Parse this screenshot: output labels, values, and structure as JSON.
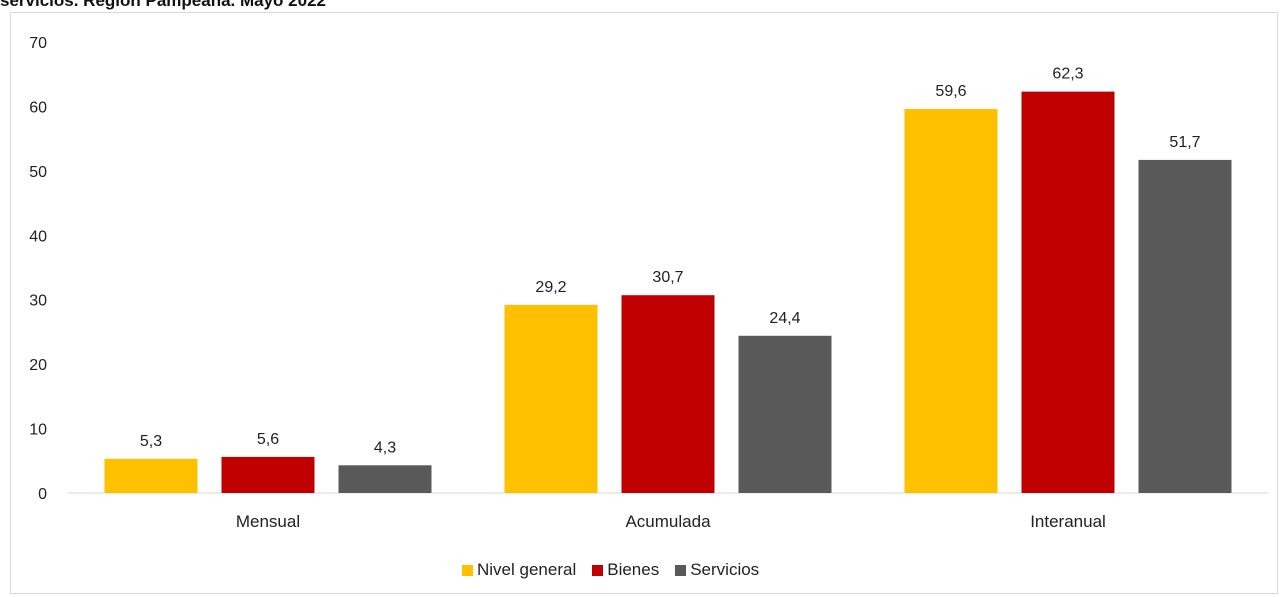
{
  "header": {
    "title": "servicios. Región Pampeana. Mayo 2022"
  },
  "chart_data": {
    "type": "bar",
    "categories": [
      "Mensual",
      "Acumulada",
      "Interanual"
    ],
    "series": [
      {
        "name": "Nivel general",
        "values": [
          5.3,
          29.2,
          59.6
        ],
        "labels": [
          "5,3",
          "29,2",
          "59,6"
        ],
        "color": "#FFC000"
      },
      {
        "name": "Bienes",
        "values": [
          5.6,
          30.7,
          62.3
        ],
        "labels": [
          "5,6",
          "30,7",
          "62,3"
        ],
        "color": "#C00000"
      },
      {
        "name": "Servicios",
        "values": [
          4.3,
          24.4,
          51.7
        ],
        "labels": [
          "4,3",
          "24,4",
          "51,7"
        ],
        "color": "#595959"
      }
    ],
    "ylim": [
      0,
      70
    ],
    "yticks": [
      0,
      10,
      20,
      30,
      40,
      50,
      60,
      70
    ],
    "grid": false,
    "legend": "bottom"
  }
}
